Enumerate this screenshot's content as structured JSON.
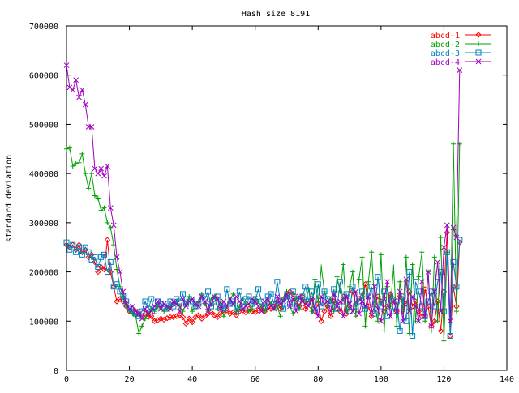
{
  "chart_data": {
    "type": "line",
    "title": "Hash size 8191",
    "xlabel": "",
    "ylabel": "standard deviation",
    "xlim": [
      0,
      140
    ],
    "ylim": [
      0,
      700000
    ],
    "x_ticks": [
      0,
      20,
      40,
      60,
      80,
      100,
      120,
      140
    ],
    "y_ticks": [
      0,
      100000,
      200000,
      300000,
      400000,
      500000,
      600000,
      700000
    ],
    "grid": false,
    "legend_position": "top-right",
    "series": [
      {
        "name": "abcd-1",
        "color": "#ff0000",
        "marker": "diamond",
        "x": [
          0,
          1,
          2,
          3,
          4,
          5,
          6,
          7,
          8,
          9,
          10,
          11,
          12,
          13,
          14,
          15,
          16,
          17,
          18,
          19,
          20,
          21,
          22,
          23,
          24,
          25,
          26,
          27,
          28,
          29,
          30,
          31,
          32,
          33,
          34,
          35,
          36,
          37,
          38,
          39,
          40,
          41,
          42,
          43,
          44,
          45,
          46,
          47,
          48,
          49,
          50,
          51,
          52,
          53,
          54,
          55,
          56,
          57,
          58,
          59,
          60,
          61,
          62,
          63,
          64,
          65,
          66,
          67,
          68,
          69,
          70,
          71,
          72,
          73,
          74,
          75,
          76,
          77,
          78,
          79,
          80,
          81,
          82,
          83,
          84,
          85,
          86,
          87,
          88,
          89,
          90,
          91,
          92,
          93,
          94,
          95,
          96,
          97,
          98,
          99,
          100,
          101,
          102,
          103,
          104,
          105,
          106,
          107,
          108,
          109,
          110,
          111,
          112,
          113,
          114,
          115,
          116,
          117,
          118,
          119,
          120,
          121,
          122,
          123,
          124,
          125
        ],
        "y": [
          255000,
          250000,
          255000,
          245000,
          255000,
          240000,
          245000,
          230000,
          235000,
          220000,
          200000,
          210000,
          205000,
          265000,
          200000,
          170000,
          140000,
          145000,
          140000,
          130000,
          120000,
          118000,
          120000,
          115000,
          110000,
          115000,
          108000,
          110000,
          100000,
          102000,
          105000,
          103000,
          106000,
          108000,
          108000,
          110000,
          112000,
          108000,
          95000,
          105000,
          98000,
          108000,
          112000,
          105000,
          110000,
          115000,
          118000,
          112000,
          108000,
          116000,
          118000,
          122000,
          115000,
          118000,
          112000,
          120000,
          122000,
          118000,
          125000,
          120000,
          118000,
          122000,
          125000,
          120000,
          128000,
          125000,
          130000,
          140000,
          125000,
          145000,
          150000,
          160000,
          155000,
          140000,
          130000,
          150000,
          125000,
          135000,
          145000,
          120000,
          135000,
          100000,
          120000,
          130000,
          110000,
          140000,
          125000,
          120000,
          150000,
          115000,
          130000,
          160000,
          135000,
          145000,
          150000,
          175000,
          130000,
          110000,
          135000,
          150000,
          140000,
          120000,
          130000,
          155000,
          145000,
          120000,
          150000,
          140000,
          135000,
          160000,
          130000,
          140000,
          120000,
          110000,
          165000,
          130000,
          90000,
          100000,
          140000,
          80000,
          160000,
          280000,
          70000,
          170000,
          130000,
          260000
        ]
      },
      {
        "name": "abcd-2",
        "color": "#00a000",
        "marker": "plus",
        "x": [
          0,
          1,
          2,
          3,
          4,
          5,
          6,
          7,
          8,
          9,
          10,
          11,
          12,
          13,
          14,
          15,
          16,
          17,
          18,
          19,
          20,
          21,
          22,
          23,
          24,
          25,
          26,
          27,
          28,
          29,
          30,
          31,
          32,
          33,
          34,
          35,
          36,
          37,
          38,
          39,
          40,
          41,
          42,
          43,
          44,
          45,
          46,
          47,
          48,
          49,
          50,
          51,
          52,
          53,
          54,
          55,
          56,
          57,
          58,
          59,
          60,
          61,
          62,
          63,
          64,
          65,
          66,
          67,
          68,
          69,
          70,
          71,
          72,
          73,
          74,
          75,
          76,
          77,
          78,
          79,
          80,
          81,
          82,
          83,
          84,
          85,
          86,
          87,
          88,
          89,
          90,
          91,
          92,
          93,
          94,
          95,
          96,
          97,
          98,
          99,
          100,
          101,
          102,
          103,
          104,
          105,
          106,
          107,
          108,
          109,
          110,
          111,
          112,
          113,
          114,
          115,
          116,
          117,
          118,
          119,
          120,
          121,
          122,
          123,
          124,
          125
        ],
        "y": [
          450000,
          452000,
          415000,
          420000,
          422000,
          440000,
          400000,
          370000,
          400000,
          355000,
          350000,
          325000,
          330000,
          300000,
          290000,
          255000,
          205000,
          170000,
          150000,
          130000,
          120000,
          115000,
          110000,
          75000,
          90000,
          105000,
          115000,
          125000,
          120000,
          130000,
          125000,
          120000,
          125000,
          130000,
          135000,
          140000,
          130000,
          120000,
          135000,
          150000,
          120000,
          130000,
          140000,
          155000,
          135000,
          120000,
          145000,
          150000,
          125000,
          140000,
          110000,
          130000,
          145000,
          155000,
          120000,
          130000,
          145000,
          135000,
          120000,
          125000,
          150000,
          140000,
          130000,
          120000,
          145000,
          135000,
          125000,
          130000,
          110000,
          145000,
          160000,
          130000,
          115000,
          150000,
          125000,
          145000,
          140000,
          165000,
          120000,
          185000,
          140000,
          210000,
          160000,
          130000,
          145000,
          120000,
          190000,
          160000,
          215000,
          120000,
          170000,
          200000,
          110000,
          185000,
          230000,
          90000,
          180000,
          240000,
          130000,
          100000,
          235000,
          80000,
          170000,
          130000,
          210000,
          90000,
          180000,
          120000,
          230000,
          75000,
          215000,
          100000,
          190000,
          240000,
          100000,
          200000,
          80000,
          230000,
          100000,
          270000,
          60000,
          240000,
          80000,
          460000,
          120000,
          460000
        ]
      },
      {
        "name": "abcd-3",
        "color": "#0080c0",
        "marker": "square",
        "x": [
          0,
          1,
          2,
          3,
          4,
          5,
          6,
          7,
          8,
          9,
          10,
          11,
          12,
          13,
          14,
          15,
          16,
          17,
          18,
          19,
          20,
          21,
          22,
          23,
          24,
          25,
          26,
          27,
          28,
          29,
          30,
          31,
          32,
          33,
          34,
          35,
          36,
          37,
          38,
          39,
          40,
          41,
          42,
          43,
          44,
          45,
          46,
          47,
          48,
          49,
          50,
          51,
          52,
          53,
          54,
          55,
          56,
          57,
          58,
          59,
          60,
          61,
          62,
          63,
          64,
          65,
          66,
          67,
          68,
          69,
          70,
          71,
          72,
          73,
          74,
          75,
          76,
          77,
          78,
          79,
          80,
          81,
          82,
          83,
          84,
          85,
          86,
          87,
          88,
          89,
          90,
          91,
          92,
          93,
          94,
          95,
          96,
          97,
          98,
          99,
          100,
          101,
          102,
          103,
          104,
          105,
          106,
          107,
          108,
          109,
          110,
          111,
          112,
          113,
          114,
          115,
          116,
          117,
          118,
          119,
          120,
          121,
          122,
          123,
          124,
          125
        ],
        "y": [
          260000,
          245000,
          255000,
          240000,
          250000,
          235000,
          250000,
          240000,
          225000,
          230000,
          210000,
          230000,
          235000,
          200000,
          220000,
          170000,
          175000,
          160000,
          150000,
          140000,
          125000,
          120000,
          115000,
          110000,
          120000,
          140000,
          125000,
          145000,
          120000,
          140000,
          135000,
          130000,
          125000,
          140000,
          130000,
          145000,
          140000,
          155000,
          135000,
          145000,
          140000,
          130000,
          135000,
          150000,
          145000,
          160000,
          130000,
          140000,
          150000,
          130000,
          125000,
          165000,
          135000,
          140000,
          120000,
          160000,
          130000,
          145000,
          150000,
          135000,
          140000,
          165000,
          140000,
          130000,
          150000,
          155000,
          135000,
          180000,
          140000,
          125000,
          150000,
          135000,
          160000,
          130000,
          145000,
          150000,
          170000,
          140000,
          160000,
          120000,
          175000,
          130000,
          160000,
          145000,
          135000,
          165000,
          125000,
          180000,
          140000,
          155000,
          120000,
          170000,
          130000,
          140000,
          160000,
          125000,
          150000,
          170000,
          115000,
          190000,
          130000,
          160000,
          110000,
          150000,
          120000,
          140000,
          80000,
          150000,
          100000,
          200000,
          70000,
          180000,
          160000,
          130000,
          110000,
          140000,
          160000,
          130000,
          180000,
          200000,
          120000,
          240000,
          70000,
          220000,
          170000,
          265000
        ]
      },
      {
        "name": "abcd-4",
        "color": "#a000c0",
        "marker": "x",
        "x": [
          0,
          1,
          2,
          3,
          4,
          5,
          6,
          7,
          8,
          9,
          10,
          11,
          12,
          13,
          14,
          15,
          16,
          17,
          18,
          19,
          20,
          21,
          22,
          23,
          24,
          25,
          26,
          27,
          28,
          29,
          30,
          31,
          32,
          33,
          34,
          35,
          36,
          37,
          38,
          39,
          40,
          41,
          42,
          43,
          44,
          45,
          46,
          47,
          48,
          49,
          50,
          51,
          52,
          53,
          54,
          55,
          56,
          57,
          58,
          59,
          60,
          61,
          62,
          63,
          64,
          65,
          66,
          67,
          68,
          69,
          70,
          71,
          72,
          73,
          74,
          75,
          76,
          77,
          78,
          79,
          80,
          81,
          82,
          83,
          84,
          85,
          86,
          87,
          88,
          89,
          90,
          91,
          92,
          93,
          94,
          95,
          96,
          97,
          98,
          99,
          100,
          101,
          102,
          103,
          104,
          105,
          106,
          107,
          108,
          109,
          110,
          111,
          112,
          113,
          114,
          115,
          116,
          117,
          118,
          119,
          120,
          121,
          122,
          123,
          124,
          125
        ],
        "y": [
          620000,
          575000,
          570000,
          590000,
          555000,
          570000,
          540000,
          495000,
          495000,
          410000,
          400000,
          410000,
          395000,
          415000,
          330000,
          295000,
          230000,
          200000,
          160000,
          135000,
          125000,
          130000,
          120000,
          115000,
          105000,
          125000,
          115000,
          120000,
          130000,
          140000,
          125000,
          135000,
          130000,
          125000,
          140000,
          135000,
          120000,
          145000,
          130000,
          140000,
          145000,
          135000,
          130000,
          150000,
          140000,
          120000,
          135000,
          150000,
          145000,
          125000,
          140000,
          130000,
          145000,
          135000,
          150000,
          140000,
          125000,
          130000,
          135000,
          145000,
          140000,
          130000,
          120000,
          140000,
          145000,
          130000,
          125000,
          150000,
          135000,
          140000,
          155000,
          130000,
          145000,
          120000,
          150000,
          140000,
          135000,
          130000,
          145000,
          125000,
          110000,
          150000,
          135000,
          140000,
          120000,
          155000,
          130000,
          140000,
          110000,
          150000,
          135000,
          120000,
          160000,
          115000,
          140000,
          130000,
          150000,
          120000,
          170000,
          125000,
          100000,
          145000,
          180000,
          110000,
          140000,
          120000,
          160000,
          100000,
          185000,
          120000,
          150000,
          130000,
          100000,
          180000,
          110000,
          200000,
          90000,
          160000,
          220000,
          120000,
          250000,
          295000,
          100000,
          290000,
          270000,
          610000
        ]
      }
    ]
  }
}
